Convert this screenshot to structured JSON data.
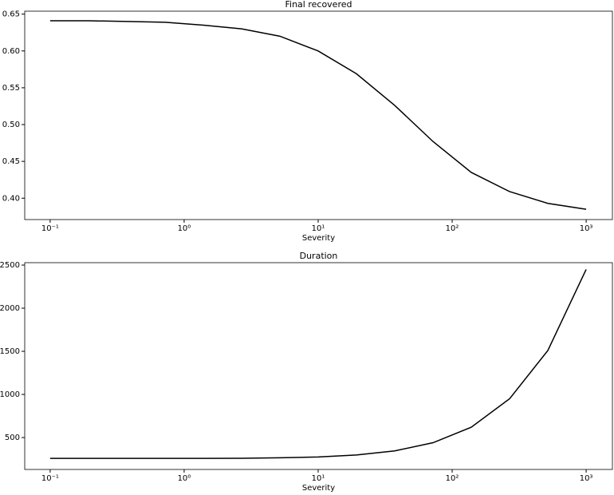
{
  "chart_data": [
    {
      "type": "line",
      "title": "Final recovered",
      "x_label": "Severity",
      "xscale": "log",
      "x": [
        0.1,
        0.193,
        0.373,
        0.72,
        1.389,
        2.683,
        5.179,
        10,
        19.31,
        37.28,
        71.97,
        138.9,
        268.3,
        517.9,
        1000
      ],
      "series": [
        {
          "color": "#000000",
          "values": [
            0.641,
            0.641,
            0.64,
            0.639,
            0.635,
            0.63,
            0.62,
            0.6,
            0.569,
            0.526,
            0.477,
            0.435,
            0.409,
            0.393,
            0.385
          ]
        }
      ],
      "xlim": [
        0.0646,
        1570
      ],
      "ylim": [
        0.371,
        0.654
      ],
      "xticks": [
        {
          "value": 0.1,
          "label": "10⁻¹"
        },
        {
          "value": 1,
          "label": "10⁰"
        },
        {
          "value": 10,
          "label": "10¹"
        },
        {
          "value": 100,
          "label": "10²"
        },
        {
          "value": 1000,
          "label": "10³"
        }
      ],
      "yticks": [
        {
          "value": 0.4,
          "label": "0.40"
        },
        {
          "value": 0.45,
          "label": "0.45"
        },
        {
          "value": 0.5,
          "label": "0.50"
        },
        {
          "value": 0.55,
          "label": "0.55"
        },
        {
          "value": 0.6,
          "label": "0.60"
        },
        {
          "value": 0.65,
          "label": "0.65"
        }
      ]
    },
    {
      "type": "line",
      "title": "Duration",
      "x_label": "Severity",
      "xscale": "log",
      "x": [
        0.1,
        0.193,
        0.373,
        0.72,
        1.389,
        2.683,
        5.179,
        10,
        19.31,
        37.28,
        71.97,
        138.9,
        268.3,
        517.9,
        1000
      ],
      "series": [
        {
          "color": "#000000",
          "values": [
            258,
            258,
            258,
            258,
            259,
            260,
            265,
            275,
            298,
            345,
            440,
            620,
            950,
            1510,
            2450
          ]
        }
      ],
      "xlim": [
        0.0646,
        1570
      ],
      "ylim": [
        130,
        2528
      ],
      "xticks": [
        {
          "value": 0.1,
          "label": "10⁻¹"
        },
        {
          "value": 1,
          "label": "10⁰"
        },
        {
          "value": 10,
          "label": "10¹"
        },
        {
          "value": 100,
          "label": "10²"
        },
        {
          "value": 1000,
          "label": "10³"
        }
      ],
      "yticks": [
        500,
        1000,
        1500,
        2000,
        2500
      ]
    }
  ]
}
